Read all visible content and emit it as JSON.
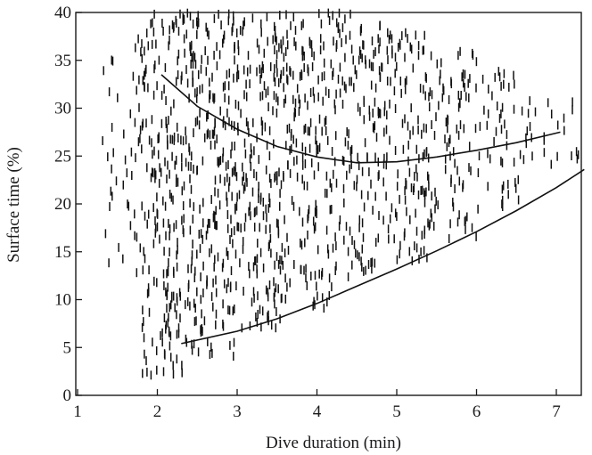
{
  "chart_data": {
    "type": "scatter",
    "title": "",
    "xlabel": "Dive duration (min)",
    "ylabel": "Surface time (%)",
    "xlim": [
      1,
      7.4
    ],
    "ylim": [
      0,
      40
    ],
    "xticks": [
      1,
      2,
      3,
      4,
      5,
      6,
      7
    ],
    "yticks": [
      0,
      5,
      10,
      15,
      20,
      25,
      30,
      35,
      40
    ],
    "grid": false,
    "marker": "short vertical dash",
    "clusters": [
      {
        "x": [
          1.3,
          1.8
        ],
        "y": [
          12,
          38
        ],
        "n": 45
      },
      {
        "x": [
          1.8,
          2.4
        ],
        "y": [
          2,
          40
        ],
        "n": 230
      },
      {
        "x": [
          2.4,
          3.0
        ],
        "y": [
          4,
          40
        ],
        "n": 240
      },
      {
        "x": [
          3.0,
          3.6
        ],
        "y": [
          7,
          40
        ],
        "n": 210
      },
      {
        "x": [
          3.6,
          4.2
        ],
        "y": [
          9,
          40
        ],
        "n": 170
      },
      {
        "x": [
          4.2,
          4.8
        ],
        "y": [
          12,
          40
        ],
        "n": 150
      },
      {
        "x": [
          4.8,
          5.4
        ],
        "y": [
          14,
          38
        ],
        "n": 130
      },
      {
        "x": [
          5.4,
          6.0
        ],
        "y": [
          16,
          36
        ],
        "n": 90
      },
      {
        "x": [
          6.0,
          6.6
        ],
        "y": [
          19,
          34
        ],
        "n": 50
      },
      {
        "x": [
          6.6,
          7.3
        ],
        "y": [
          22,
          31
        ],
        "n": 25
      }
    ],
    "series": [
      {
        "x": [
          2.05,
          2.5,
          3.0,
          3.5,
          4.0,
          4.5,
          5.0,
          5.5,
          6.0,
          6.5,
          7.05
        ],
        "y": [
          33.5,
          30.2,
          27.8,
          26.0,
          24.9,
          24.3,
          24.4,
          24.9,
          25.6,
          26.4,
          27.5
        ]
      },
      {
        "x": [
          2.3,
          3.0,
          3.5,
          4.0,
          4.5,
          5.0,
          5.5,
          6.0,
          6.5,
          7.0,
          7.35
        ],
        "y": [
          5.4,
          6.7,
          8.0,
          9.6,
          11.4,
          13.2,
          15.1,
          17.1,
          19.3,
          21.7,
          23.6
        ]
      }
    ]
  }
}
